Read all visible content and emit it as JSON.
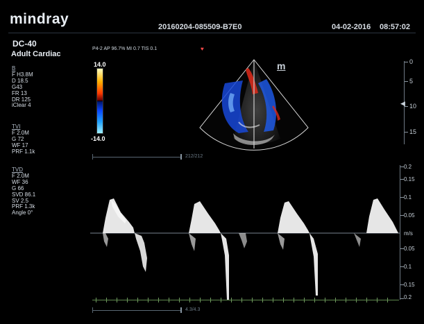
{
  "header": {
    "brand": "mindray",
    "study_id": "20160204-085509-B7E0",
    "date": "04-02-2016",
    "time": "08:57:02"
  },
  "probe": "DC-40",
  "preset": "Adult Cardiac",
  "acquisition": "P4-2  AP 96.7%  MI 0.7  TIS 0.1",
  "params": {
    "b_mode": {
      "title": "B",
      "lines": [
        "F H3.8M",
        "D 18.5",
        "G43",
        "FR 13",
        "DR 125",
        "iClear 4"
      ]
    },
    "tvi": {
      "title": "TVI",
      "lines": [
        "F 2.0M",
        "G 72",
        "WF 17",
        "PRF 1.1k"
      ]
    },
    "tvd": {
      "title": "TVD",
      "lines": [
        "F 2.0M",
        "WF 36",
        "G 66",
        "SVD 86.1",
        "SV 2.5",
        "PRF 1.3k",
        "Angle 0°"
      ]
    }
  },
  "color_bar": {
    "max": "14.0",
    "min": "-14.0"
  },
  "image_mode_icon": "m",
  "depth_scale": {
    "labels": [
      "0",
      "5",
      "10",
      "15"
    ]
  },
  "range_label": "212/212",
  "velocity_scale": {
    "labels": [
      "0.2",
      "0.15",
      "0.1",
      "0.05",
      "0.05",
      "0.1",
      "0.15",
      "0.2"
    ],
    "unit": "m/s"
  },
  "time_label": "4.3/4.3",
  "icons": {
    "position_marker": "heart-icon",
    "focus": "focus-arrow-icon"
  },
  "colors": {
    "background": "#000000",
    "doppler_trace": "#ffffff",
    "baseline": "#7a858f",
    "sweep_axis": "#6e9a5d"
  }
}
